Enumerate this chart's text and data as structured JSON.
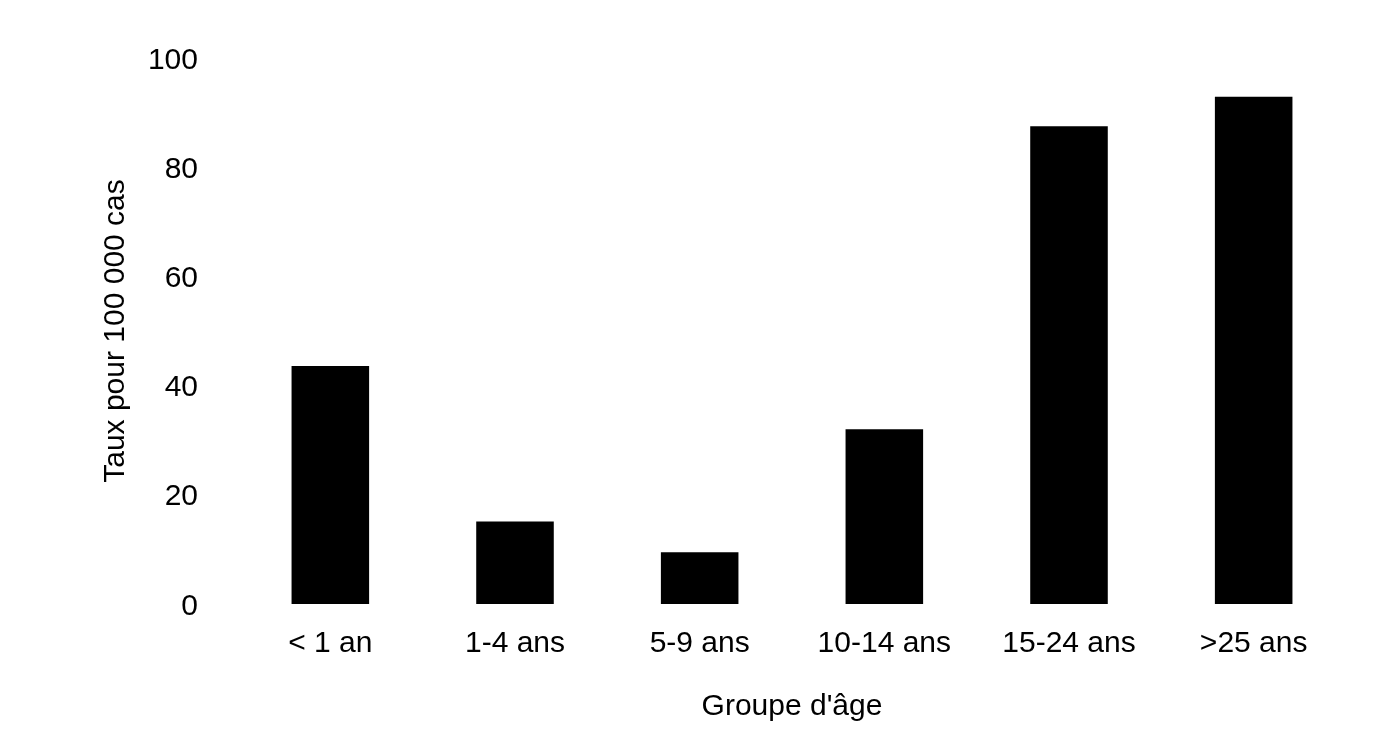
{
  "chart_data": {
    "type": "bar",
    "xlabel": "Groupe d'âge",
    "ylabel": "Taux pour 100 000 cas",
    "categories": [
      "< 1 an",
      "1-4 ans",
      "5-9 ans",
      "10-14 ans",
      "15-24 ans",
      ">25 ans"
    ],
    "values": [
      43.6,
      15.1,
      9.5,
      32,
      87.5,
      92.9
    ],
    "color": "#000000",
    "ylim": [
      0,
      100
    ],
    "yticks": [
      0,
      20,
      40,
      60,
      80,
      100
    ],
    "grid": false
  }
}
